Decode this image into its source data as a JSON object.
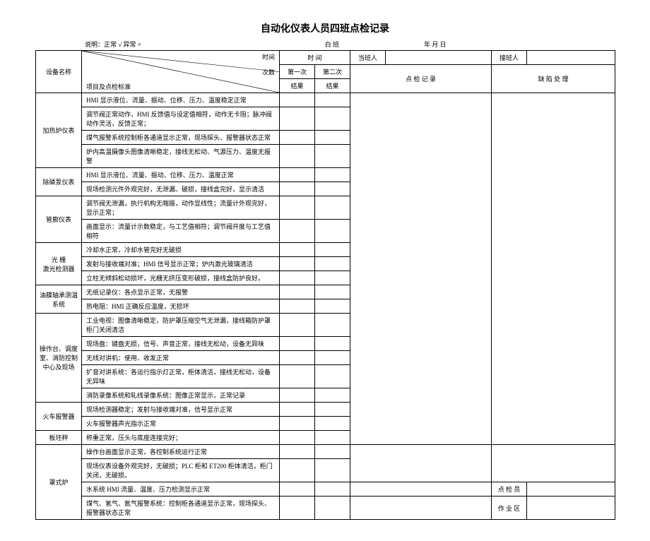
{
  "title": "自动化仪表人员四班点检记录",
  "legend": "说明：正常 √    异常 ×",
  "shift_label": "白  班",
  "date_label": "年   月   日",
  "header": {
    "equip_name": "设备名称",
    "diag_top": "时间",
    "diag_mid": "次数",
    "diag_bot": "项目及点检标准",
    "time": "时  间",
    "duty_person": "当班人",
    "receiver": "接班人",
    "first": "第一次",
    "second": "第二次",
    "record": "点 检 记 录",
    "defect": "缺 陷 处 理",
    "result1": "结果",
    "result2": "结果",
    "result_col": "结果"
  },
  "groups": [
    {
      "name": "加热炉仪表",
      "rows": [
        "HMI 显示液位、流量、振动、位移、压力、温度稳定正常",
        "调节阀正常动作，HMI 反馈值与设定值相符，动作无卡阻；脉冲阀动作灵活，反馈正常；",
        "煤气报警系统控制柜各通道显示正常，现场探头、报警器状态正常",
        "炉内高温摄像头图像清晰稳定，接线无松动、气源压力、温度无报警"
      ]
    },
    {
      "name": "除磷泵仪表",
      "rows": [
        "HMI 显示液位、流量、振动、位移、压力、温度正常",
        "现场检测元件外观完好，无泄漏、破损，接线盒完好，显示清洁"
      ]
    },
    {
      "name": "管廊仪表",
      "rows": [
        "调节阀无泄漏，执行机构无喘振，动作显线性；流量计外观完好，显示正常；",
        "画面显示：流量计示数稳定，与工艺值相符；调节阀开度与工艺值相符"
      ]
    },
    {
      "name": "光 栅\n激光检测器",
      "rows": [
        "冷却水正常，冷却水管完好无破损",
        "发射与接收端对准；HMI 信号显示正常；炉内激光玻璃清洁",
        "立柱无倾斜松动损坏，光栅无挤压变形破损，接线盒防护良好。"
      ]
    },
    {
      "name": "油膜轴承测温系统",
      "rows": [
        "无纸记录仪：各点显示正常，无报警",
        "热电阻：HMI 正确反应温度，无损坏"
      ]
    },
    {
      "name": "操作台、调度室、消防控制中心及现场",
      "rows": [
        "工业电视：图像清晰稳定，防护罩压缩空气无泄漏，接线箱防护罩柜门关闭清洁",
        "现场盘：键盘无损，信号、声音正常，接线无松动，设备无异味",
        "无线对讲机：使用、收发正常",
        "扩音对讲系统：各运行指示灯正常，柜体清洁，接线无松动，设备无异味",
        "消防录像系统和轧线录像系统：图像正常显示，正常记录"
      ]
    },
    {
      "name": "火车报警器",
      "rows": [
        "现场检测器稳定；发射与接收端对准，信号显示正常",
        "火车报警器声光指示正常"
      ]
    },
    {
      "name": "板坯秤",
      "rows": [
        "称重正常，压头与底座连接完好；"
      ]
    },
    {
      "name": "罩式炉",
      "rows": [
        "操作台画面显示正常，各控制系统运行正常",
        "现场仪表设备外观完好，无破损；PLC 柜和 ET200 柜体清洁，柜门关闭，无破损。",
        "水系统 HMI 流量、温度、压力检测显示正常",
        "煤气、氢气、氮气报警系统：控制柜各通道显示正常，现场探头、报警器状态正常"
      ],
      "tail": [
        "点 检 员",
        "作 业 区"
      ]
    }
  ]
}
